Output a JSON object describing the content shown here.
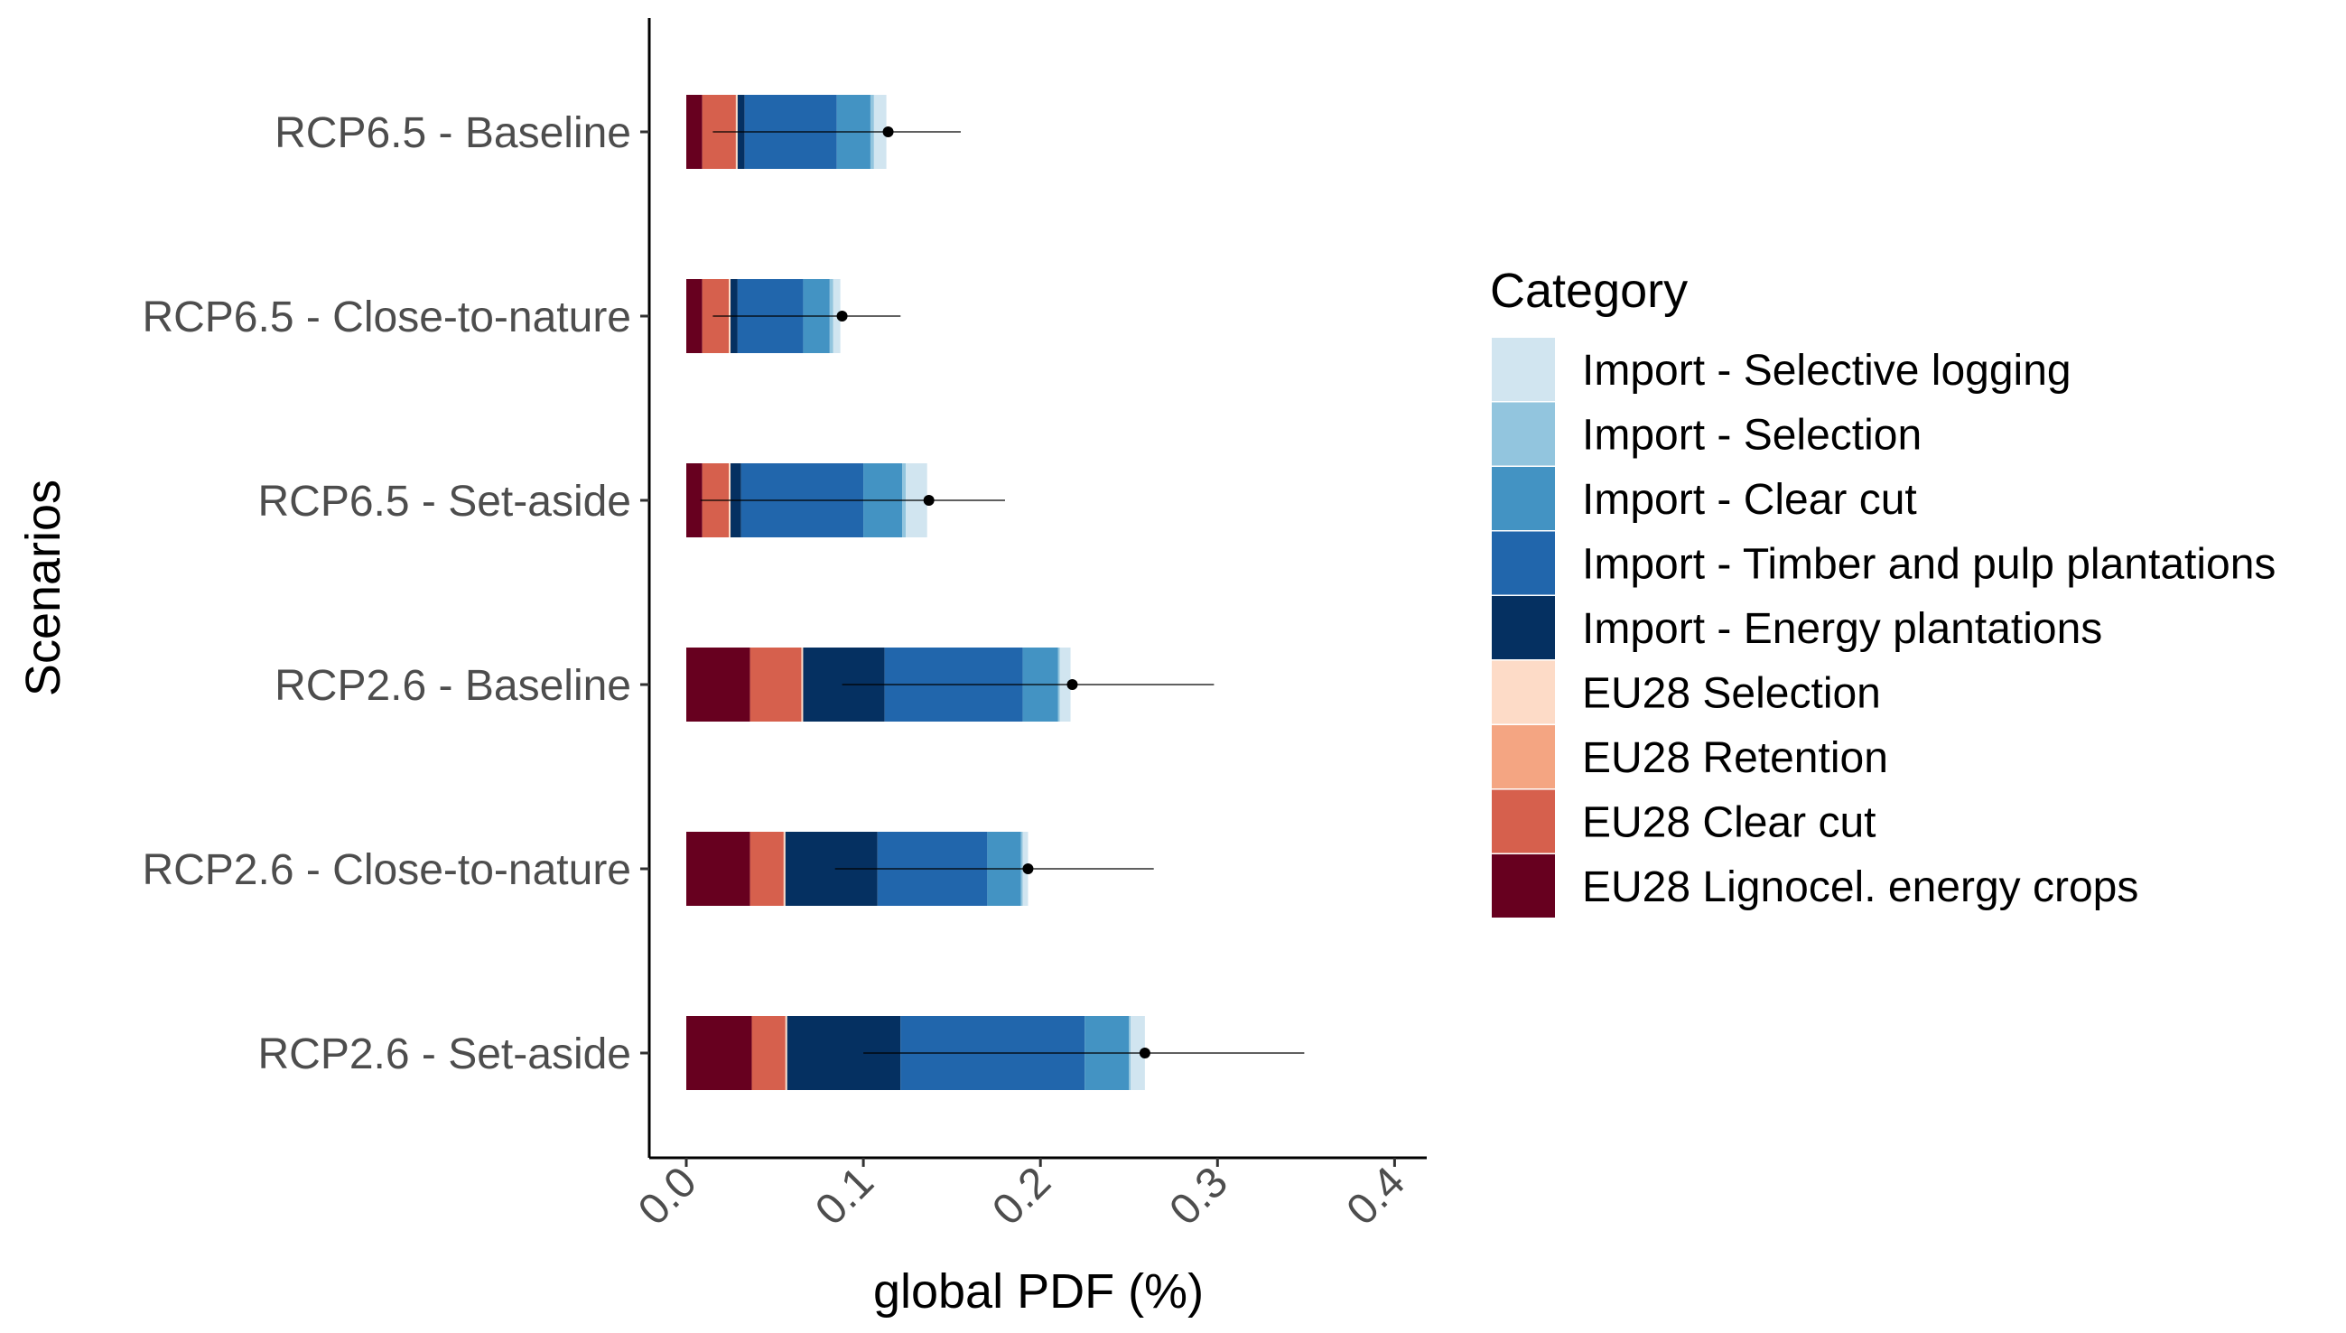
{
  "chart_data": {
    "type": "bar",
    "orientation": "horizontal",
    "stacked": true,
    "categories": [
      "RCP6.5 - Baseline",
      "RCP6.5 - Close-to-nature",
      "RCP6.5 - Set-aside",
      "RCP2.6 - Baseline",
      "RCP2.6 - Close-to-nature",
      "RCP2.6 - Set-aside"
    ],
    "series": [
      {
        "name": "EU28 Lignocel. energy crops",
        "color": "#67001F",
        "values": [
          0.009,
          0.009,
          0.009,
          0.036,
          0.036,
          0.037
        ]
      },
      {
        "name": "EU28 Clear cut",
        "color": "#D6604D",
        "values": [
          0.019,
          0.015,
          0.015,
          0.029,
          0.019,
          0.019
        ]
      },
      {
        "name": "EU28 Retention",
        "color": "#F4A582",
        "values": [
          0,
          0,
          0,
          0,
          0,
          0
        ]
      },
      {
        "name": "EU28 Selection",
        "color": "#FDDBC7",
        "values": [
          0.001,
          0.001,
          0.001,
          0.001,
          0.001,
          0.001
        ]
      },
      {
        "name": "Import - Energy plantations",
        "color": "#053061",
        "values": [
          0.004,
          0.004,
          0.006,
          0.046,
          0.052,
          0.064
        ]
      },
      {
        "name": "Import - Timber and pulp plantations",
        "color": "#2166AC",
        "values": [
          0.052,
          0.037,
          0.069,
          0.078,
          0.062,
          0.104
        ]
      },
      {
        "name": "Import - Clear cut",
        "color": "#4393C3",
        "values": [
          0.019,
          0.015,
          0.022,
          0.02,
          0.019,
          0.025
        ]
      },
      {
        "name": "Import - Selection",
        "color": "#92C5DE",
        "values": [
          0.002,
          0.002,
          0.002,
          0.001,
          0.001,
          0.001
        ]
      },
      {
        "name": "Import - Selective logging",
        "color": "#D1E5F0",
        "values": [
          0.007,
          0.004,
          0.012,
          0.006,
          0.003,
          0.008
        ]
      }
    ],
    "points": [
      0.114,
      0.088,
      0.137,
      0.218,
      0.193,
      0.259
    ],
    "error_bars": [
      [
        0.015,
        0.155
      ],
      [
        0.015,
        0.121
      ],
      [
        0.008,
        0.18
      ],
      [
        0.088,
        0.298
      ],
      [
        0.084,
        0.264
      ],
      [
        0.1,
        0.349
      ]
    ],
    "x_ticks": [
      "0.0",
      "0.1",
      "0.2",
      "0.3",
      "0.4"
    ],
    "xlim": [
      -0.02,
      0.42
    ],
    "xlabel": "global PDF (%)",
    "ylabel": "Scenarios",
    "legend": {
      "title": "Category",
      "placement": "right",
      "entries": [
        "Import - Selective logging",
        "Import - Selection",
        "Import - Clear cut",
        "Import - Timber and pulp plantations",
        "Import - Energy plantations",
        "EU28 Selection",
        "EU28 Retention",
        "EU28 Clear cut",
        "EU28 Lignocel. energy crops"
      ]
    },
    "grid": false
  }
}
